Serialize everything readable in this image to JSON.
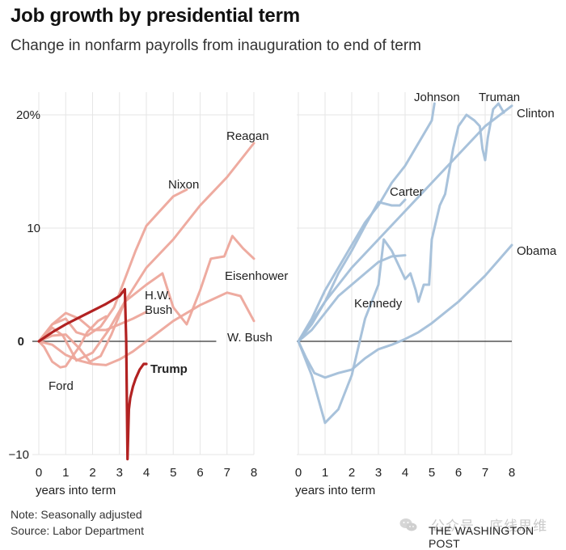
{
  "header": {
    "title": "Job growth by presidential term",
    "subtitle": "Change in nonfarm payrolls from inauguration to end of term"
  },
  "footer": {
    "note": "Note: Seasonally adjusted",
    "source": "Source: Labor Department",
    "credit": "THE WASHINGTON POST",
    "watermark": "公众号 · 底线思维"
  },
  "chart_data": [
    {
      "type": "line",
      "panel": "left",
      "title": "Job growth by presidential term",
      "xlabel": "years into term",
      "ylabel": "",
      "xlim": [
        0,
        8
      ],
      "ylim": [
        -10,
        22
      ],
      "xticks": [
        0,
        1,
        2,
        3,
        4,
        5,
        6,
        7,
        8
      ],
      "yticks": [
        -10,
        0,
        10,
        20
      ],
      "ytick_labels": [
        "−10",
        "0",
        "10",
        "20%"
      ],
      "color": "#eda79b",
      "highlight_color": "#b22222",
      "series": [
        {
          "name": "Reagan",
          "label": "Reagan",
          "highlight": false,
          "x": [
            0,
            0.5,
            1,
            1.5,
            1.9,
            2.3,
            2.7,
            3.2,
            4,
            5,
            6,
            7,
            8
          ],
          "y": [
            0,
            0.5,
            0.6,
            -0.6,
            -1.8,
            -1.3,
            0.6,
            3.5,
            6.5,
            9,
            12,
            14.5,
            17.5
          ]
        },
        {
          "name": "Nixon",
          "label": "Nixon",
          "highlight": false,
          "x": [
            0,
            0.5,
            1,
            1.4,
            1.8,
            2.3,
            2.8,
            3.2,
            3.6,
            4,
            4.5,
            5,
            5.5
          ],
          "y": [
            0,
            1.5,
            2,
            0.8,
            0.5,
            1.3,
            3,
            5.5,
            8,
            10.2,
            11.5,
            12.8,
            13.4
          ]
        },
        {
          "name": "Eisenhower",
          "label": "Eisenhower",
          "highlight": false,
          "x": [
            0,
            0.5,
            0.9,
            1.4,
            2,
            2.6,
            3.2,
            4,
            4.6,
            5,
            5.5,
            6,
            6.4,
            6.9,
            7.2,
            7.6,
            8
          ],
          "y": [
            0,
            1.2,
            0.5,
            -1.7,
            -1,
            1,
            3.5,
            5,
            6,
            3,
            1.5,
            4.5,
            7.3,
            7.5,
            9.3,
            8.2,
            7.3
          ]
        },
        {
          "name": "W. Bush",
          "label": "W. Bush",
          "highlight": false,
          "x": [
            0,
            0.5,
            1,
            1.5,
            2,
            2.5,
            3,
            3.5,
            4,
            5,
            6,
            7,
            7.5,
            8
          ],
          "y": [
            0,
            -0.3,
            -1.2,
            -1.7,
            -2,
            -2.1,
            -1.6,
            -0.9,
            0,
            1.8,
            3.2,
            4.3,
            4,
            1.8
          ]
        },
        {
          "name": "H.W. Bush",
          "label": "H.W.\nBush",
          "highlight": false,
          "x": [
            0,
            0.5,
            1,
            1.5,
            2,
            2.5,
            3,
            3.5,
            4
          ],
          "y": [
            0,
            1.5,
            2.5,
            2,
            1,
            1,
            1.5,
            2,
            2.6
          ]
        },
        {
          "name": "Ford",
          "label": "Ford",
          "highlight": false,
          "x": [
            0,
            0.2,
            0.5,
            0.8,
            1,
            1.2,
            1.5,
            1.8,
            2.2,
            2.5
          ],
          "y": [
            0,
            -0.5,
            -1.8,
            -2.3,
            -2.2,
            -1.5,
            -0.5,
            0.8,
            1.8,
            2.2
          ]
        },
        {
          "name": "Trump",
          "label": "Trump",
          "highlight": true,
          "x": [
            0,
            0.5,
            1,
            1.5,
            2,
            2.5,
            3,
            3.2,
            3.25,
            3.3,
            3.35,
            3.4,
            3.5,
            3.6,
            3.75,
            3.9,
            4
          ],
          "y": [
            0,
            0.8,
            1.5,
            2.1,
            2.7,
            3.3,
            4,
            4.6,
            0,
            -10.4,
            -6,
            -5,
            -4,
            -3.3,
            -2.5,
            -2,
            -2
          ]
        }
      ]
    },
    {
      "type": "line",
      "panel": "right",
      "xlabel": "years into term",
      "ylabel": "",
      "xlim": [
        0,
        8
      ],
      "ylim": [
        -10,
        22
      ],
      "xticks": [
        0,
        1,
        2,
        3,
        4,
        5,
        6,
        7,
        8
      ],
      "yticks": [
        -10,
        0,
        10,
        20
      ],
      "color": "#a3bfd9",
      "series": [
        {
          "name": "Johnson",
          "label": "Johnson",
          "x": [
            0,
            0.5,
            1,
            1.5,
            2,
            2.5,
            3,
            3.5,
            4,
            4.5,
            5,
            5.1
          ],
          "y": [
            0,
            2,
            4.5,
            6.5,
            8.5,
            10.5,
            12,
            14,
            15.5,
            17.5,
            19.5,
            21
          ]
        },
        {
          "name": "Truman",
          "label": "Truman",
          "x": [
            0,
            0.5,
            1,
            1.5,
            2,
            2.5,
            3,
            3.2,
            3.5,
            4,
            4.2,
            4.4,
            4.5,
            4.7,
            4.9,
            5,
            5.3,
            5.5,
            5.8,
            6,
            6.3,
            6.6,
            6.8,
            6.9,
            7,
            7.1,
            7.3,
            7.5,
            7.7
          ],
          "y": [
            0,
            -3,
            -7.2,
            -6,
            -3,
            2,
            5,
            9,
            8,
            5.5,
            6,
            4.5,
            3.5,
            5,
            5,
            9,
            12,
            13,
            17,
            19,
            20,
            19.5,
            19,
            17,
            16,
            18,
            20.5,
            21,
            20.2
          ]
        },
        {
          "name": "Clinton",
          "label": "Clinton",
          "x": [
            0,
            1,
            2,
            3,
            4,
            5,
            6,
            7,
            8
          ],
          "y": [
            0,
            3.5,
            6.5,
            9,
            11.5,
            14,
            16.5,
            19,
            20.8
          ]
        },
        {
          "name": "Carter",
          "label": "Carter",
          "x": [
            0,
            0.5,
            1,
            1.5,
            2,
            2.5,
            3,
            3.5,
            3.8,
            4
          ],
          "y": [
            0,
            1.5,
            3.5,
            6,
            8,
            10.2,
            12.3,
            12,
            12,
            12.5
          ]
        },
        {
          "name": "Kennedy",
          "label": "Kennedy",
          "x": [
            0,
            0.5,
            1,
            1.5,
            2,
            2.5,
            3,
            3.5,
            4
          ],
          "y": [
            0,
            1,
            2.5,
            4,
            5,
            6,
            7,
            7.5,
            7.6
          ]
        },
        {
          "name": "Obama",
          "label": "Obama",
          "x": [
            0,
            0.3,
            0.6,
            1,
            1.5,
            2,
            2.5,
            3,
            3.5,
            4,
            4.5,
            5,
            6,
            7,
            8
          ],
          "y": [
            0,
            -1.5,
            -2.8,
            -3.2,
            -2.8,
            -2.5,
            -1.5,
            -0.7,
            -0.3,
            0.2,
            0.8,
            1.6,
            3.5,
            5.8,
            8.5
          ]
        }
      ]
    }
  ]
}
